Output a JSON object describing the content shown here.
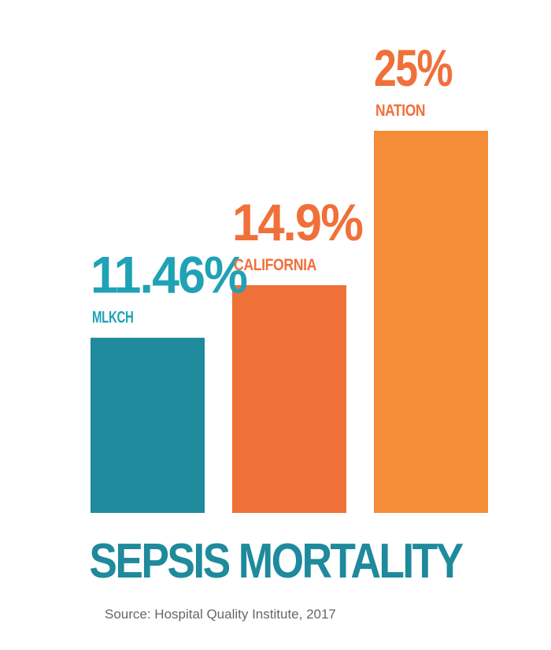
{
  "chart_data": {
    "type": "bar",
    "categories": [
      "MLKCH",
      "CALIFORNIA",
      "NATION"
    ],
    "values": [
      11.46,
      14.9,
      25
    ],
    "value_labels": [
      "11.46%",
      "14.9%",
      "25%"
    ],
    "title": "SEPSIS MORTALITY",
    "source": "Source: Hospital Quality Institute, 2017",
    "ylim": [
      0,
      25
    ],
    "grid": false,
    "legend": "none",
    "colors": {
      "bars": [
        "#1e8a9c",
        "#f0703a",
        "#f48c38"
      ],
      "labels": [
        "#1fa2b5",
        "#f0703a",
        "#f0703a"
      ],
      "title": "#1e8a9c"
    }
  }
}
